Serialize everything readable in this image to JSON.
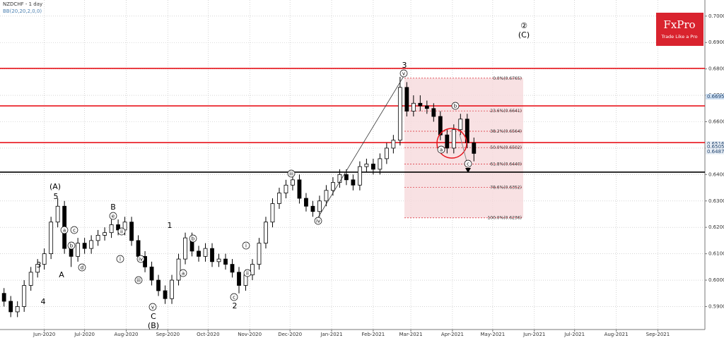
{
  "chart_data": {
    "type": "candlestick",
    "title": "NZDCHF - 1 day",
    "subtitle": "BB(20,20,2,0,0)",
    "x": [
      -30,
      -25,
      -20,
      -15,
      -10,
      -5,
      0,
      5,
      10,
      15,
      20,
      25,
      30,
      35,
      40,
      45,
      50,
      55,
      60,
      65,
      70,
      75,
      80,
      85,
      90,
      95,
      100,
      105,
      110,
      115,
      120,
      125,
      130,
      135,
      140,
      145,
      150,
      155,
      160,
      165,
      170,
      175,
      180,
      185,
      190,
      195,
      200,
      205,
      210,
      215,
      220,
      225,
      230,
      235,
      240,
      245,
      250,
      255,
      260,
      265,
      270,
      275,
      280,
      285,
      290,
      295,
      300,
      305,
      310,
      315,
      320
    ],
    "open": [
      0.595,
      0.592,
      0.588,
      0.59,
      0.598,
      0.603,
      0.606,
      0.61,
      0.622,
      0.628,
      0.612,
      0.609,
      0.614,
      0.612,
      0.615,
      0.617,
      0.618,
      0.621,
      0.619,
      0.622,
      0.615,
      0.609,
      0.605,
      0.6,
      0.596,
      0.593,
      0.6,
      0.608,
      0.616,
      0.611,
      0.609,
      0.612,
      0.607,
      0.608,
      0.606,
      0.603,
      0.598,
      0.602,
      0.606,
      0.614,
      0.622,
      0.629,
      0.633,
      0.636,
      0.638,
      0.631,
      0.628,
      0.626,
      0.63,
      0.634,
      0.637,
      0.64,
      0.638,
      0.636,
      0.643,
      0.644,
      0.642,
      0.646,
      0.65,
      0.653,
      0.673,
      0.664,
      0.667,
      0.666,
      0.665,
      0.662,
      0.655,
      0.65,
      0.657,
      0.661,
      0.652
    ],
    "high": [
      0.597,
      0.594,
      0.592,
      0.6,
      0.605,
      0.608,
      0.612,
      0.624,
      0.631,
      0.63,
      0.614,
      0.616,
      0.616,
      0.617,
      0.619,
      0.62,
      0.623,
      0.623,
      0.624,
      0.624,
      0.617,
      0.611,
      0.607,
      0.602,
      0.598,
      0.602,
      0.61,
      0.618,
      0.618,
      0.613,
      0.614,
      0.614,
      0.61,
      0.61,
      0.608,
      0.605,
      0.604,
      0.608,
      0.616,
      0.624,
      0.631,
      0.635,
      0.638,
      0.64,
      0.64,
      0.633,
      0.63,
      0.632,
      0.636,
      0.639,
      0.642,
      0.642,
      0.64,
      0.645,
      0.646,
      0.646,
      0.648,
      0.652,
      0.655,
      0.677,
      0.675,
      0.67,
      0.67,
      0.668,
      0.667,
      0.664,
      0.657,
      0.659,
      0.663,
      0.663,
      0.654
    ],
    "low": [
      0.59,
      0.586,
      0.586,
      0.588,
      0.596,
      0.601,
      0.604,
      0.608,
      0.62,
      0.61,
      0.605,
      0.607,
      0.61,
      0.61,
      0.613,
      0.615,
      0.616,
      0.617,
      0.617,
      0.613,
      0.607,
      0.603,
      0.598,
      0.594,
      0.591,
      0.591,
      0.598,
      0.606,
      0.609,
      0.607,
      0.607,
      0.605,
      0.605,
      0.604,
      0.601,
      0.595,
      0.596,
      0.6,
      0.604,
      0.612,
      0.62,
      0.627,
      0.631,
      0.634,
      0.629,
      0.626,
      0.624,
      0.624,
      0.628,
      0.632,
      0.635,
      0.636,
      0.634,
      0.634,
      0.641,
      0.64,
      0.64,
      0.644,
      0.648,
      0.651,
      0.662,
      0.662,
      0.664,
      0.663,
      0.66,
      0.653,
      0.648,
      0.648,
      0.655,
      0.65,
      0.645
    ],
    "close": [
      0.592,
      0.588,
      0.59,
      0.598,
      0.603,
      0.606,
      0.61,
      0.622,
      0.628,
      0.612,
      0.609,
      0.614,
      0.612,
      0.615,
      0.617,
      0.618,
      0.621,
      0.619,
      0.622,
      0.615,
      0.609,
      0.605,
      0.6,
      0.596,
      0.593,
      0.6,
      0.608,
      0.616,
      0.611,
      0.609,
      0.612,
      0.607,
      0.608,
      0.606,
      0.603,
      0.598,
      0.602,
      0.606,
      0.614,
      0.622,
      0.629,
      0.633,
      0.636,
      0.638,
      0.631,
      0.628,
      0.626,
      0.63,
      0.634,
      0.637,
      0.64,
      0.638,
      0.636,
      0.643,
      0.644,
      0.642,
      0.646,
      0.65,
      0.653,
      0.673,
      0.664,
      0.667,
      0.666,
      0.665,
      0.662,
      0.655,
      0.65,
      0.657,
      0.661,
      0.652,
      0.648
    ],
    "xlim": [
      -33,
      491
    ],
    "ylim": [
      0.5813,
      0.7061
    ],
    "xticks": [
      {
        "value": 0,
        "label": "Jun-2020"
      },
      {
        "value": 30,
        "label": "Jul-2020"
      },
      {
        "value": 61,
        "label": "Aug-2020"
      },
      {
        "value": 92,
        "label": "Sep-2020"
      },
      {
        "value": 122,
        "label": "Oct-2020"
      },
      {
        "value": 153,
        "label": "Nov-2020"
      },
      {
        "value": 183,
        "label": "Dec-2020"
      },
      {
        "value": 214,
        "label": "Jan-2021"
      },
      {
        "value": 245,
        "label": "Feb-2021"
      },
      {
        "value": 273,
        "label": "Mar-2021"
      },
      {
        "value": 304,
        "label": "Apr-2021"
      },
      {
        "value": 334,
        "label": "May-2021"
      },
      {
        "value": 365,
        "label": "Jun-2021"
      },
      {
        "value": 395,
        "label": "Jul-2021"
      },
      {
        "value": 426,
        "label": "Aug-2021"
      },
      {
        "value": 457,
        "label": "Sep-2021"
      }
    ],
    "yticks": [
      {
        "value": 0.59,
        "label": "0.5900"
      },
      {
        "value": 0.6,
        "label": "0.6000"
      },
      {
        "value": 0.61,
        "label": "0.6100"
      },
      {
        "value": 0.62,
        "label": "0.6200"
      },
      {
        "value": 0.63,
        "label": "0.6300"
      },
      {
        "value": 0.64,
        "label": "0.6400"
      },
      {
        "value": 0.65,
        "label": "0.6500"
      },
      {
        "value": 0.66,
        "label": "0.6600"
      },
      {
        "value": 0.67,
        "label": "0.6700"
      },
      {
        "value": 0.68,
        "label": "0.6800"
      },
      {
        "value": 0.69,
        "label": "0.6900"
      },
      {
        "value": 0.7,
        "label": "0.7000"
      }
    ],
    "grid": true,
    "levels": [
      {
        "value": 0.6802,
        "color": "#e8141c"
      },
      {
        "value": 0.666,
        "color": "#e8141c"
      },
      {
        "value": 0.6521,
        "color": "#e8141c"
      },
      {
        "value": 0.6409,
        "color": "#000000"
      }
    ],
    "price_labels": [
      0.6695,
      0.6516,
      0.6505,
      0.6487
    ],
    "fibonacci": [
      {
        "value": 0.6765,
        "label": "0.0%(0.6765)"
      },
      {
        "value": 0.6641,
        "label": "23.6%(0.6641)"
      },
      {
        "value": 0.6564,
        "label": "38.2%(0.6564)"
      },
      {
        "value": 0.6502,
        "label": "50.0%(0.6502)"
      },
      {
        "value": 0.644,
        "label": "61.8%(0.6440)"
      },
      {
        "value": 0.6352,
        "label": "78.6%(0.6352)"
      },
      {
        "value": 0.6236,
        "label": "100.0%(0.6236)"
      }
    ],
    "wave_labels": [
      "(A)",
      "5",
      "3",
      "4",
      "A",
      "B",
      "C",
      "(B)",
      "1",
      "2",
      "3",
      "②",
      "(C)"
    ],
    "circled_labels": [
      "a",
      "b",
      "c",
      "d",
      "e",
      "ii",
      "i",
      "iv",
      "iii",
      "v",
      "a",
      "b",
      "c",
      "ii",
      "i",
      "iii",
      "iv",
      "v",
      "b",
      "a",
      "c"
    ]
  },
  "branding": {
    "name": "FxPro",
    "tagline": "Trade Like a Pro"
  }
}
